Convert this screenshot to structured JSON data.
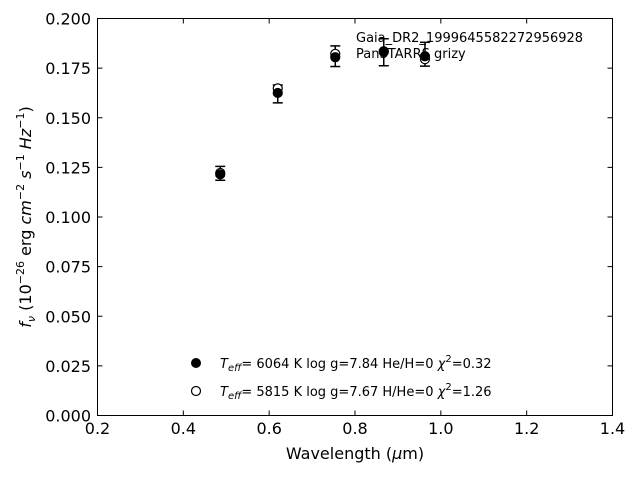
{
  "chart_data": {
    "type": "scatter",
    "xlabel_main": "Wavelength (",
    "xlabel_unit_symbol": "μ",
    "xlabel_unit_rest": "m)",
    "ylabel_f": "f",
    "ylabel_sub": "ν",
    "ylabel_open": " (10",
    "ylabel_exp1": "−26",
    "ylabel_erg": " erg ",
    "ylabel_cm": "cm",
    "ylabel_exp2": "−2",
    "ylabel_s": " s",
    "ylabel_exp3": "−1",
    "ylabel_hz": " Hz",
    "ylabel_exp4": "−1",
    "ylabel_close": ")",
    "xlim": [
      0.2,
      1.4
    ],
    "ylim": [
      0.0,
      0.2
    ],
    "x_ticks": [
      "0.2",
      "0.4",
      "0.6",
      "0.8",
      "1.0",
      "1.2",
      "1.4"
    ],
    "x_tick_values": [
      0.2,
      0.4,
      0.6,
      0.8,
      1.0,
      1.2,
      1.4
    ],
    "y_ticks": [
      "0.000",
      "0.025",
      "0.050",
      "0.075",
      "0.100",
      "0.125",
      "0.150",
      "0.175",
      "0.200"
    ],
    "y_tick_values": [
      0.0,
      0.025,
      0.05,
      0.075,
      0.1,
      0.125,
      0.15,
      0.175,
      0.2
    ],
    "annotation_line1": "Gaia_DR2_1999645582272956928",
    "annotation_line2": "PanSTARRS grizy",
    "observed": {
      "x": [
        0.486,
        0.62,
        0.754,
        0.867,
        0.963
      ],
      "y": [
        0.122,
        0.162,
        0.181,
        0.183,
        0.182
      ],
      "yerr": [
        0.0035,
        0.0045,
        0.0052,
        0.0068,
        0.006
      ]
    },
    "series": [
      {
        "marker": "filled",
        "x": [
          0.486,
          0.62,
          0.754,
          0.867,
          0.963
        ],
        "y": [
          0.1215,
          0.1625,
          0.1805,
          0.1835,
          0.181
        ],
        "legend_T": "T",
        "legend_eff": "eff",
        "legend_rest": "=  6064 K  log g=7.84  He/H=0  ",
        "legend_chi": "χ",
        "legend_chi_exp": "2",
        "legend_chi_val": "=0.32"
      },
      {
        "marker": "open",
        "x": [
          0.486,
          0.62,
          0.754,
          0.867,
          0.963
        ],
        "y": [
          0.1222,
          0.1648,
          0.1822,
          0.1832,
          0.1795
        ],
        "legend_T": "T",
        "legend_eff": "eff",
        "legend_rest": "=  5815 K  log g=7.67  H/He=0  ",
        "legend_chi": "χ",
        "legend_chi_exp": "2",
        "legend_chi_val": "=1.26"
      }
    ]
  }
}
